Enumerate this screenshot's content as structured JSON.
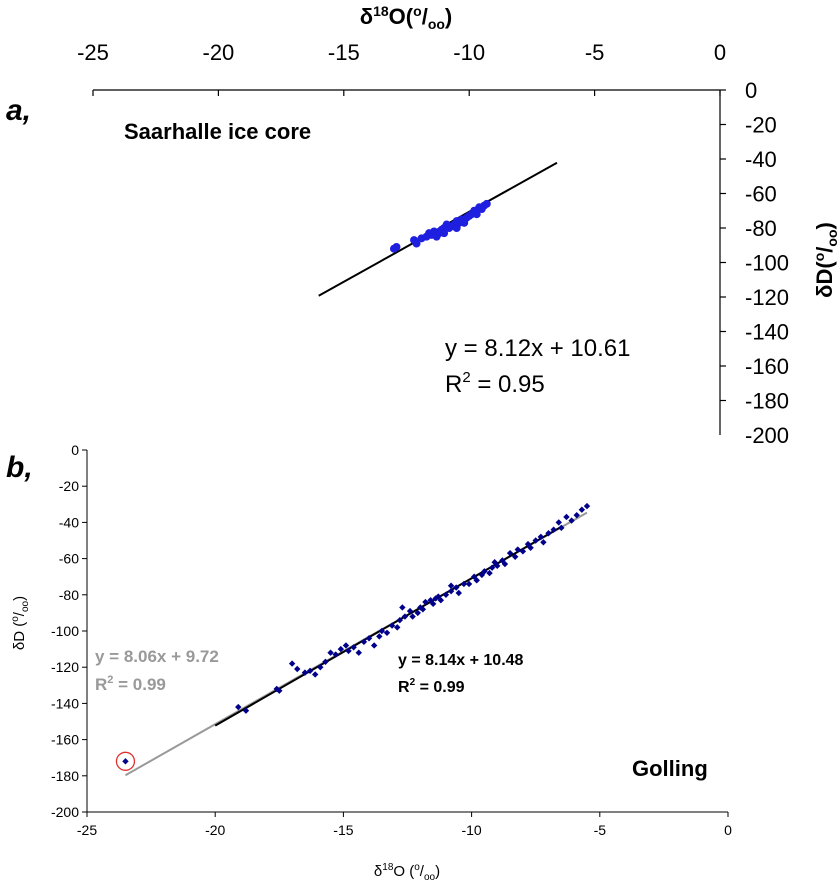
{
  "chart_data": [
    {
      "panel_label": "a,",
      "type": "scatter",
      "title": "Saarhalle ice core",
      "xlabel": {
        "base": "δ",
        "sup": "18",
        "main": "O(",
        "sup2": "o",
        "slash": "/",
        "sub": "oo",
        "close": ")"
      },
      "ylabel": {
        "base": "δD(",
        "sup": "o",
        "slash": "/",
        "sub": "oo",
        "close": ")"
      },
      "xlim": [
        -25,
        0
      ],
      "ylim": [
        -200,
        0
      ],
      "x_ticks": [
        "-25",
        "-20",
        "-15",
        "-10",
        "-5",
        "0"
      ],
      "y_ticks": [
        "0",
        "-20",
        "-40",
        "-60",
        "-80",
        "-100",
        "-120",
        "-140",
        "-160",
        "-180",
        "-200"
      ],
      "colors": {
        "points": "#1f1fe0",
        "fit": "#000000"
      },
      "fit_line": {
        "x": [
          -16,
          -6.5
        ],
        "y": [
          -119.3,
          -42.2
        ]
      },
      "equation": "y = 8.12x + 10.61",
      "r2_prefix": "R",
      "r2_sup": "2",
      "r2_suffix": " = 0.95",
      "points": [
        [
          -13.0,
          -92
        ],
        [
          -12.9,
          -91
        ],
        [
          -12.2,
          -87
        ],
        [
          -12.1,
          -89
        ],
        [
          -11.9,
          -86
        ],
        [
          -11.7,
          -85
        ],
        [
          -11.6,
          -83
        ],
        [
          -11.5,
          -84
        ],
        [
          -11.4,
          -82
        ],
        [
          -11.3,
          -85
        ],
        [
          -11.2,
          -83
        ],
        [
          -11.1,
          -81
        ],
        [
          -11.0,
          -80
        ],
        [
          -11.0,
          -83
        ],
        [
          -10.9,
          -78
        ],
        [
          -10.8,
          -80
        ],
        [
          -10.7,
          -79
        ],
        [
          -10.6,
          -78
        ],
        [
          -10.5,
          -76
        ],
        [
          -10.5,
          -80
        ],
        [
          -10.4,
          -77
        ],
        [
          -10.3,
          -75
        ],
        [
          -10.2,
          -77
        ],
        [
          -10.1,
          -74
        ],
        [
          -10.0,
          -73
        ],
        [
          -9.9,
          -72
        ],
        [
          -9.8,
          -70
        ],
        [
          -9.7,
          -72
        ],
        [
          -9.6,
          -68
        ],
        [
          -9.5,
          -69
        ],
        [
          -9.4,
          -67
        ],
        [
          -9.3,
          -66
        ]
      ]
    },
    {
      "panel_label": "b,",
      "type": "scatter",
      "title": "Golling",
      "xlabel": {
        "base": "δ",
        "sup": "18",
        "main": "O (",
        "sup2": "o",
        "slash": "/",
        "sub": "oo",
        "close": ")"
      },
      "ylabel": {
        "base": "δD (",
        "sup": "o",
        "slash": "/",
        "sub": "oo",
        "close": ")"
      },
      "xlim": [
        -25,
        0
      ],
      "ylim": [
        -200,
        0
      ],
      "x_ticks": [
        "-25",
        "-20",
        "-15",
        "-10",
        "-5",
        "0"
      ],
      "y_ticks": [
        "0",
        "-20",
        "-40",
        "-60",
        "-80",
        "-100",
        "-120",
        "-140",
        "-160",
        "-180",
        "-200"
      ],
      "colors": {
        "points": "#00008b",
        "fit": "#000000",
        "fit_all": "#999999",
        "outlier_circle": "#e03030"
      },
      "fit_line": {
        "x": [
          -20,
          -6.5
        ],
        "y": [
          -152.3,
          -42.4
        ]
      },
      "fit_line_all": {
        "x": [
          -23.5,
          -5.5
        ],
        "y": [
          -179.7,
          -34.6
        ]
      },
      "equation": "y = 8.14x + 10.48",
      "r2_prefix": "R",
      "r2_sup": "2",
      "r2_suffix": " = 0.99",
      "equation_all": "y = 8.06x + 9.72",
      "r2_all_prefix": "R",
      "r2_all_sup": "2",
      "r2_all_suffix": " = 0.99",
      "outlier": [
        -23.5,
        -172
      ],
      "points": [
        [
          -19.1,
          -142
        ],
        [
          -18.8,
          -144
        ],
        [
          -17.6,
          -132
        ],
        [
          -17.5,
          -133
        ],
        [
          -17.0,
          -118
        ],
        [
          -16.8,
          -121
        ],
        [
          -16.3,
          -122
        ],
        [
          -16.1,
          -124
        ],
        [
          -15.9,
          -120
        ],
        [
          -15.7,
          -117
        ],
        [
          -15.3,
          -113
        ],
        [
          -15.1,
          -110
        ],
        [
          -14.9,
          -108
        ],
        [
          -14.8,
          -111
        ],
        [
          -14.6,
          -109
        ],
        [
          -14.4,
          -112
        ],
        [
          -14.2,
          -106
        ],
        [
          -14.0,
          -104
        ],
        [
          -13.8,
          -108
        ],
        [
          -13.6,
          -103
        ],
        [
          -13.3,
          -101
        ],
        [
          -13.1,
          -97
        ],
        [
          -12.9,
          -98
        ],
        [
          -12.8,
          -94
        ],
        [
          -12.7,
          -87
        ],
        [
          -12.6,
          -92
        ],
        [
          -12.4,
          -89
        ],
        [
          -12.3,
          -92
        ],
        [
          -12.1,
          -90
        ],
        [
          -11.9,
          -88
        ],
        [
          -11.8,
          -84
        ],
        [
          -11.6,
          -83
        ],
        [
          -11.5,
          -85
        ],
        [
          -11.3,
          -81
        ],
        [
          -11.2,
          -83
        ],
        [
          -11.0,
          -80
        ],
        [
          -10.8,
          -78
        ],
        [
          -10.6,
          -76
        ],
        [
          -10.5,
          -79
        ],
        [
          -10.3,
          -74
        ],
        [
          -10.1,
          -74
        ],
        [
          -9.9,
          -70
        ],
        [
          -9.8,
          -72
        ],
        [
          -9.6,
          -69
        ],
        [
          -9.5,
          -67
        ],
        [
          -9.3,
          -68
        ],
        [
          -9.1,
          -62
        ],
        [
          -9.0,
          -64
        ],
        [
          -8.8,
          -61
        ],
        [
          -8.7,
          -63
        ],
        [
          -8.5,
          -57
        ],
        [
          -8.3,
          -59
        ],
        [
          -8.2,
          -55
        ],
        [
          -8.0,
          -56
        ],
        [
          -7.8,
          -52
        ],
        [
          -7.7,
          -54
        ],
        [
          -7.5,
          -50
        ],
        [
          -7.3,
          -48
        ],
        [
          -7.2,
          -51
        ],
        [
          -7.0,
          -46
        ],
        [
          -6.8,
          -44
        ],
        [
          -6.6,
          -40
        ],
        [
          -6.5,
          -43
        ],
        [
          -6.3,
          -37
        ],
        [
          -6.1,
          -39
        ],
        [
          -5.9,
          -36
        ],
        [
          -5.7,
          -33
        ],
        [
          -5.5,
          -31
        ],
        [
          -10.8,
          -75
        ],
        [
          -12.0,
          -87
        ],
        [
          -13.5,
          -100
        ],
        [
          -15.5,
          -112
        ],
        [
          -16.5,
          -123
        ],
        [
          -11.4,
          -82
        ],
        [
          -9.2,
          -65
        ]
      ]
    }
  ]
}
